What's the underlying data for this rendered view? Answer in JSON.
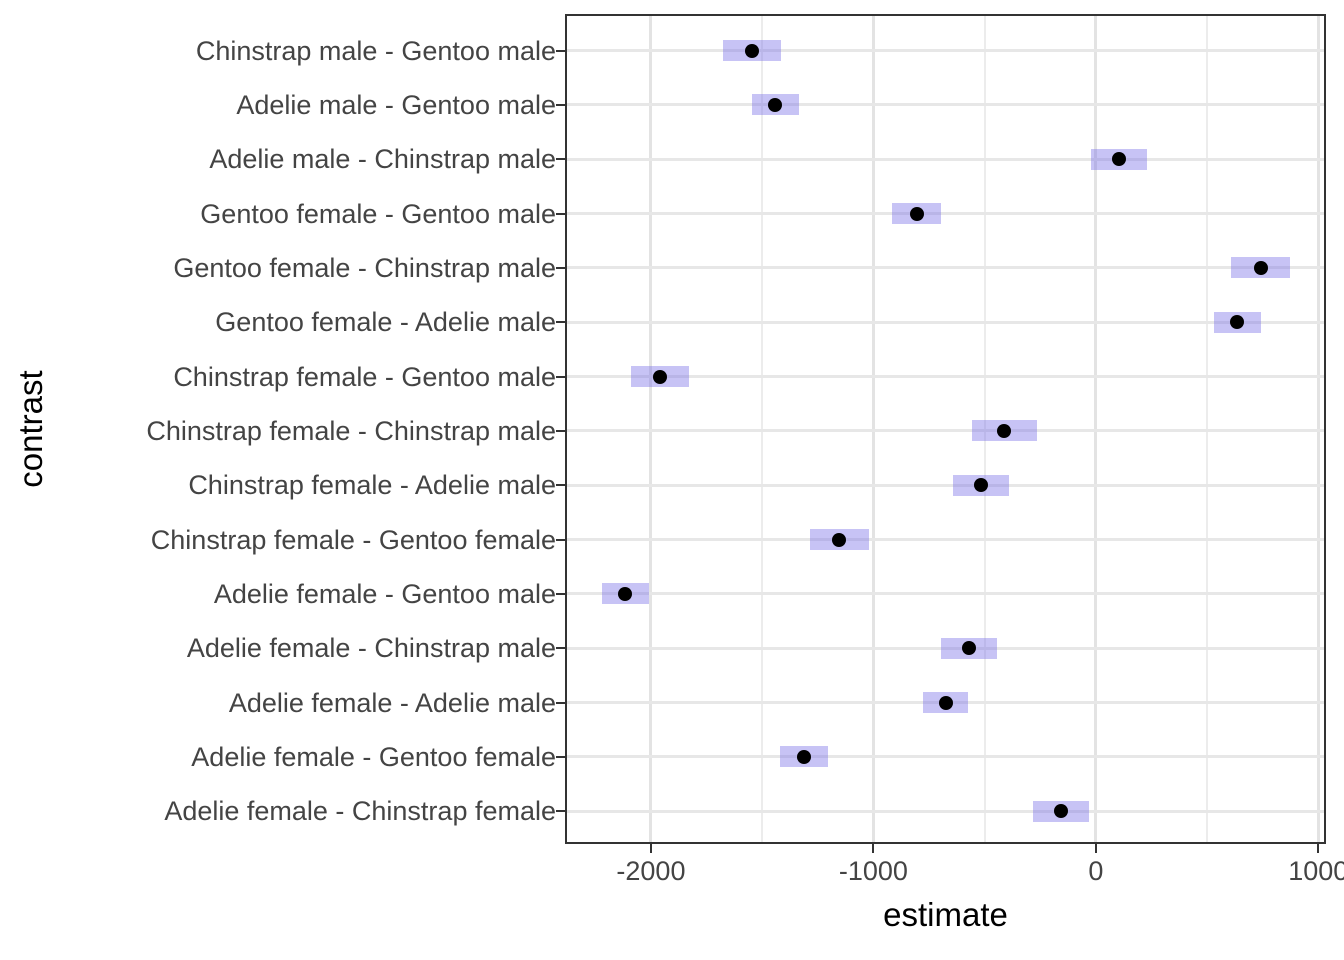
{
  "chart_data": {
    "type": "scatter",
    "subtype": "point-range: point estimates with 95% confidence-interval bars (emmeans-style contrast plot)",
    "title": "",
    "xlabel": "estimate",
    "ylabel": "contrast",
    "xlim": [
      -2376,
      1027
    ],
    "x_major_ticks": [
      -2000,
      -1000,
      0,
      1000
    ],
    "x_tick_labels": [
      "-2000",
      "-1000",
      "0",
      "1000"
    ],
    "x_minor_gridlines": [
      -1500,
      -500,
      500
    ],
    "grid": "major vertical + minor vertical + horizontal line at each category",
    "legend_position": "none",
    "rows": [
      {
        "label": "Chinstrap male - Gentoo male",
        "estimate": -1545.9,
        "lower": -1675.6,
        "upper": -1416.1
      },
      {
        "label": "Adelie male - Gentoo male",
        "estimate": -1441.4,
        "lower": -1546.6,
        "upper": -1336.1
      },
      {
        "label": "Adelie male - Chinstrap male",
        "estimate": 104.5,
        "lower": -21.4,
        "upper": 230.4
      },
      {
        "label": "Gentoo female - Gentoo male",
        "estimate": -805.1,
        "lower": -916.3,
        "upper": -693.9
      },
      {
        "label": "Gentoo female - Chinstrap male",
        "estimate": 740.8,
        "lower": 609.8,
        "upper": 871.8
      },
      {
        "label": "Gentoo female - Adelie male",
        "estimate": 636.3,
        "lower": 529.6,
        "upper": 742.9
      },
      {
        "label": "Chinstrap female - Gentoo male",
        "estimate": -1957.6,
        "lower": -2087.4,
        "upper": -1827.9
      },
      {
        "label": "Chinstrap female - Chinstrap male",
        "estimate": -411.8,
        "lower": -558.8,
        "upper": -264.7
      },
      {
        "label": "Chinstrap female - Adelie male",
        "estimate": -516.3,
        "lower": -642.2,
        "upper": -390.4
      },
      {
        "label": "Chinstrap female - Gentoo female",
        "estimate": -1152.5,
        "lower": -1283.5,
        "upper": -1021.5
      },
      {
        "label": "Adelie female - Gentoo male",
        "estimate": -2116.0,
        "lower": -2221.2,
        "upper": -2010.8
      },
      {
        "label": "Adelie female - Chinstrap male",
        "estimate": -570.1,
        "lower": -696.0,
        "upper": -444.3
      },
      {
        "label": "Adelie female - Adelie male",
        "estimate": -674.7,
        "lower": -775.0,
        "upper": -574.3
      },
      {
        "label": "Adelie female - Gentoo female",
        "estimate": -1310.9,
        "lower": -1417.6,
        "upper": -1204.2
      },
      {
        "label": "Adelie female - Chinstrap female",
        "estimate": -158.4,
        "lower": -284.3,
        "upper": -32.5
      }
    ]
  },
  "colors": {
    "background": "#FFFFFF",
    "ci_bar_fill": "rgba(122,113,230,0.42)",
    "ci_bar_fill_on_white": "#C7C3F4",
    "point": "#000000",
    "panel_border": "#333333",
    "grid_major": "#E3E3E3",
    "grid_minor": "#ECECEC",
    "axis_tick": "#333333",
    "axis_text": "#444444",
    "axis_title": "#000000"
  }
}
